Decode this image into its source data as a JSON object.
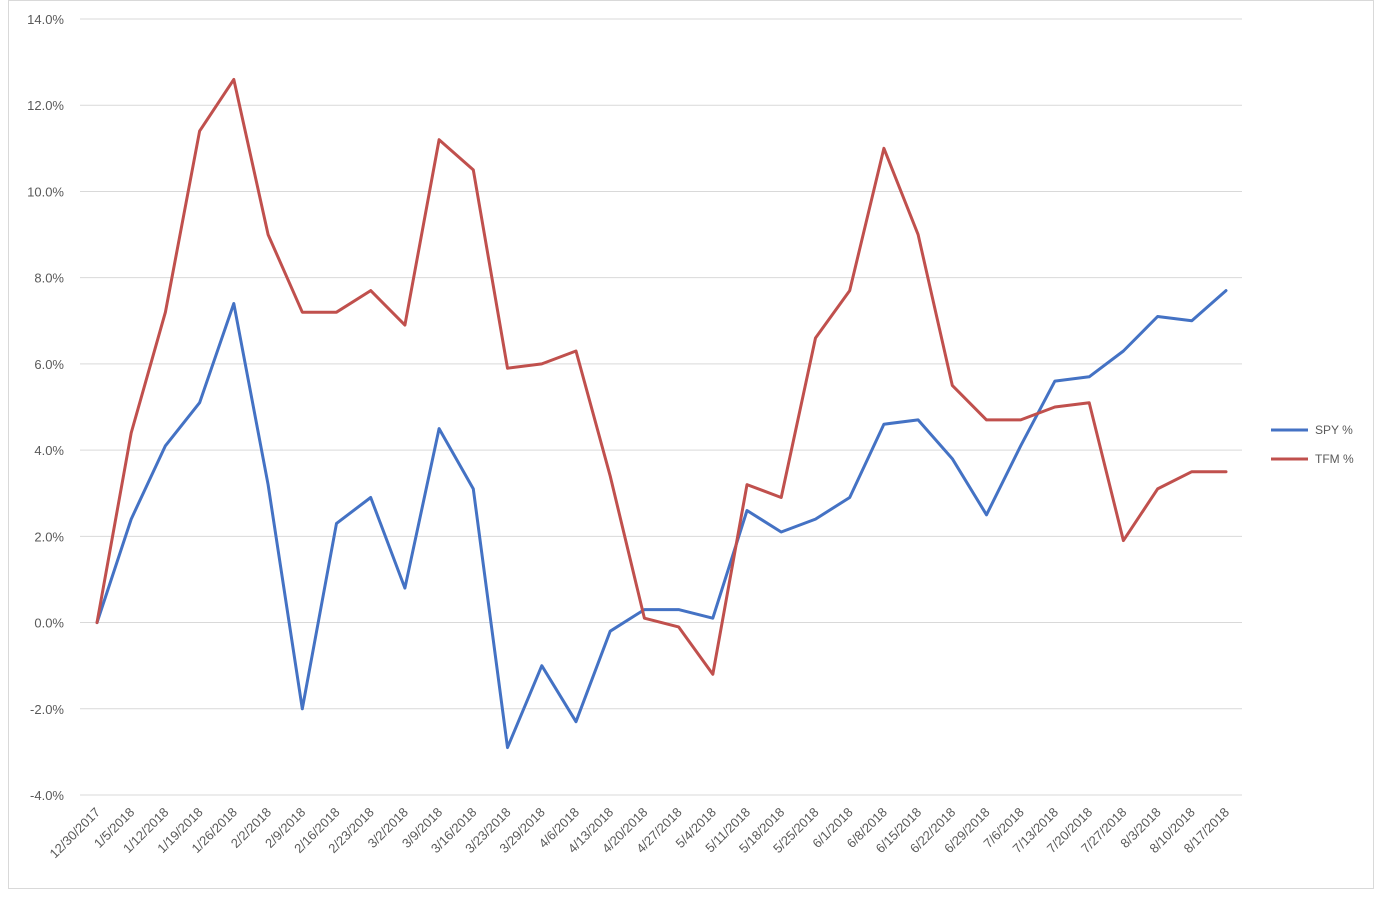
{
  "chart_data": {
    "type": "line",
    "title": "",
    "xlabel": "",
    "ylabel": "",
    "ylim": [
      -4.0,
      14.0
    ],
    "yticks": [
      -4.0,
      -2.0,
      0.0,
      2.0,
      4.0,
      6.0,
      8.0,
      10.0,
      12.0,
      14.0
    ],
    "ytick_labels": [
      "-4.0%",
      "-2.0%",
      "0.0%",
      "2.0%",
      "4.0%",
      "6.0%",
      "8.0%",
      "10.0%",
      "12.0%",
      "14.0%"
    ],
    "y_unit": "%",
    "grid": "horizontal",
    "legend_position": "right",
    "categories": [
      "12/30/2017",
      "1/5/2018",
      "1/12/2018",
      "1/19/2018",
      "1/26/2018",
      "2/2/2018",
      "2/9/2018",
      "2/16/2018",
      "2/23/2018",
      "3/2/2018",
      "3/9/2018",
      "3/16/2018",
      "3/23/2018",
      "3/29/2018",
      "4/6/2018",
      "4/13/2018",
      "4/20/2018",
      "4/27/2018",
      "5/4/2018",
      "5/11/2018",
      "5/18/2018",
      "5/25/2018",
      "6/1/2018",
      "6/8/2018",
      "6/15/2018",
      "6/22/2018",
      "6/29/2018",
      "7/6/2018",
      "7/13/2018",
      "7/20/2018",
      "7/27/2018",
      "8/3/2018",
      "8/10/2018",
      "8/17/2018"
    ],
    "series": [
      {
        "name": "SPY %",
        "color": "#4472c4",
        "values": [
          0.0,
          2.4,
          4.1,
          5.1,
          7.4,
          3.2,
          -2.0,
          2.3,
          2.9,
          0.8,
          4.5,
          3.1,
          -2.9,
          -1.0,
          -2.3,
          -0.2,
          0.3,
          0.3,
          0.1,
          2.6,
          2.1,
          2.4,
          2.9,
          4.6,
          4.7,
          3.8,
          2.5,
          4.1,
          5.6,
          5.7,
          6.3,
          7.1,
          7.0,
          7.7
        ]
      },
      {
        "name": "TFM %",
        "color": "#c0504d",
        "values": [
          0.0,
          4.4,
          7.2,
          11.4,
          12.6,
          9.0,
          7.2,
          7.2,
          7.7,
          6.9,
          11.2,
          10.5,
          5.9,
          6.0,
          6.3,
          3.4,
          0.1,
          -0.1,
          -1.2,
          3.2,
          2.9,
          6.6,
          7.7,
          11.0,
          9.0,
          5.5,
          4.7,
          4.7,
          5.0,
          5.1,
          1.9,
          3.1,
          3.5,
          3.5
        ]
      }
    ]
  }
}
